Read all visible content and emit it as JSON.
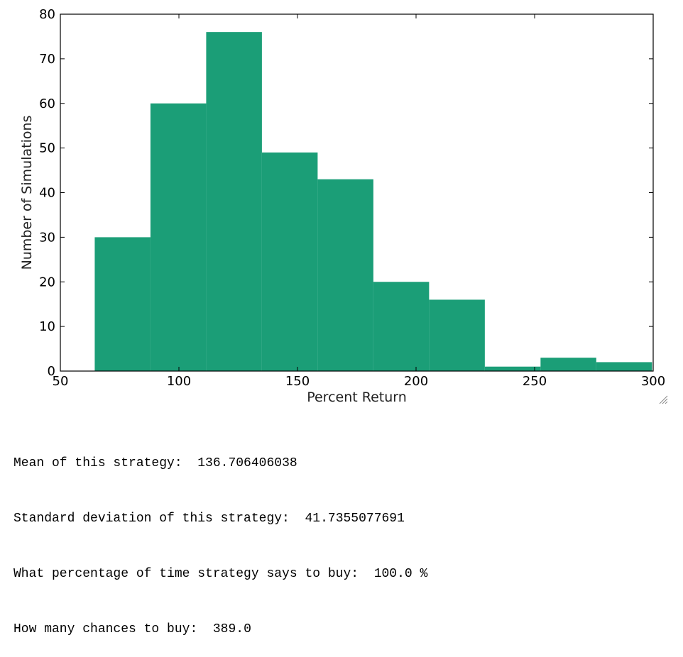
{
  "chart_data": {
    "type": "bar",
    "title": "",
    "xlabel": "Percent Return",
    "ylabel": "Number of Simulations",
    "xlim": [
      50,
      300
    ],
    "ylim": [
      0,
      80
    ],
    "xticks": [
      50,
      100,
      150,
      200,
      250,
      300
    ],
    "yticks": [
      0,
      10,
      20,
      30,
      40,
      50,
      60,
      70,
      80
    ],
    "bin_edges": [
      64.5,
      88.0,
      111.5,
      135.0,
      158.5,
      182.0,
      205.5,
      229.0,
      252.5,
      276.0,
      299.5
    ],
    "values": [
      30,
      60,
      76,
      49,
      43,
      20,
      16,
      1,
      3,
      2
    ],
    "bar_color": "#1b9e77",
    "grid": false
  },
  "output_lines": [
    {
      "label": "Mean of this strategy:",
      "value": "136.706406038",
      "suffix": ""
    },
    {
      "label": "Standard deviation of this strategy:",
      "value": "41.7355077691",
      "suffix": ""
    },
    {
      "label": "What percentage of time strategy says to buy:",
      "value": "100.0",
      "suffix": " %"
    },
    {
      "label": "How many chances to buy:",
      "value": "389.0",
      "suffix": ""
    }
  ]
}
